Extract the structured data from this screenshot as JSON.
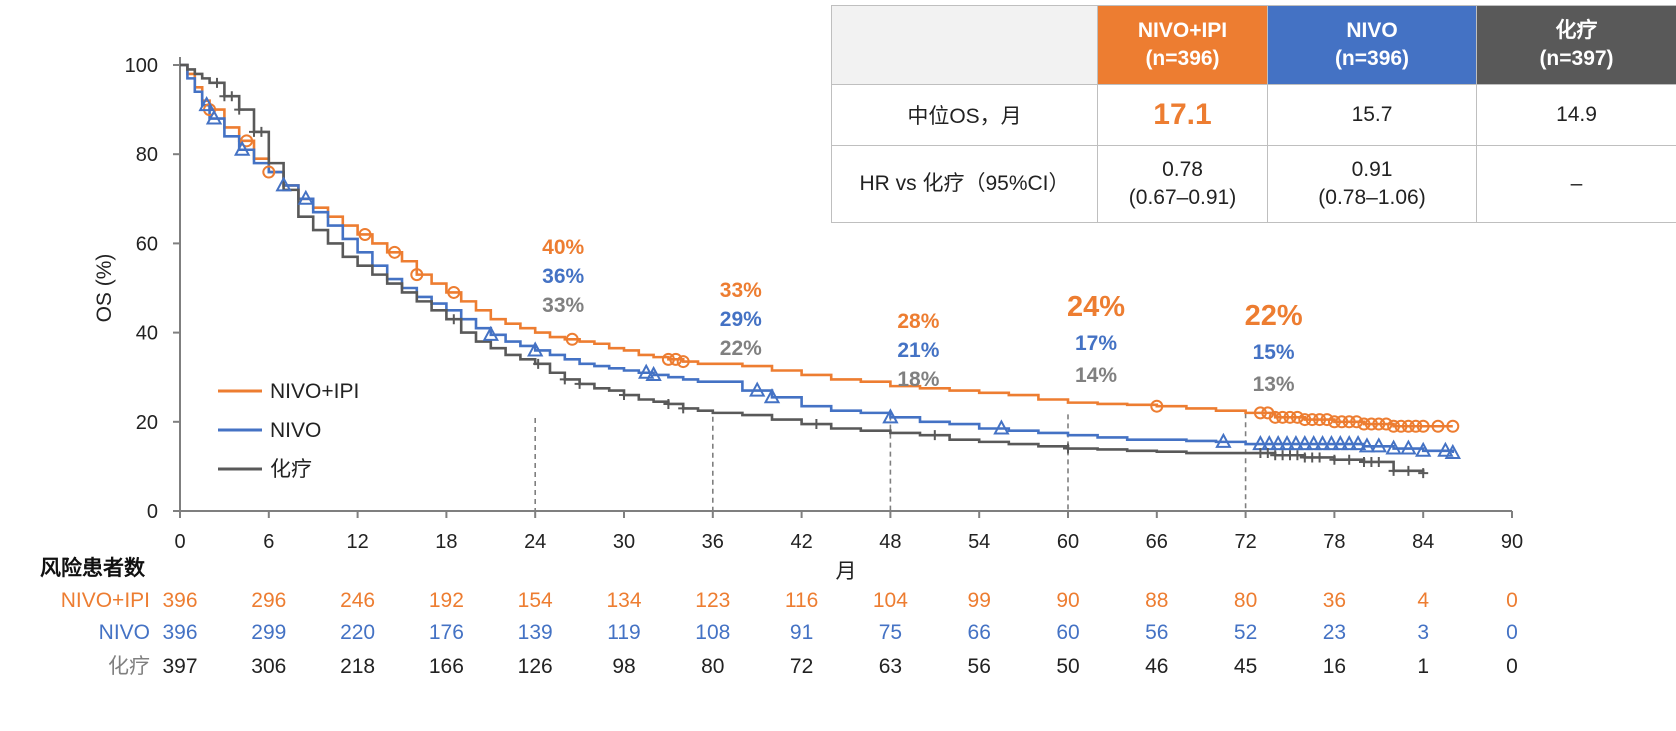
{
  "colors": {
    "nivo_ipi": "#ED7D31",
    "nivo": "#4472C4",
    "chemo": "#595959",
    "chemo_label": "#808080",
    "header_blank": "#f2f2f2",
    "header_chemo": "#595959"
  },
  "chart_data": {
    "type": "line",
    "subtype": "kaplan-meier",
    "title": "",
    "xlabel": "月",
    "ylabel": "OS (%)",
    "xlim": [
      0,
      90
    ],
    "ylim": [
      0,
      100
    ],
    "x_ticks": [
      0,
      6,
      12,
      18,
      24,
      30,
      36,
      42,
      48,
      54,
      60,
      66,
      72,
      78,
      84,
      90
    ],
    "y_ticks": [
      0,
      20,
      40,
      60,
      80,
      100
    ],
    "grid": false,
    "legend_position": "bottom-left",
    "series": [
      {
        "name": "NIVO+IPI",
        "color": "#ED7D31",
        "censor_marker": "circle",
        "x": [
          0,
          0.5,
          1,
          1.5,
          2,
          3,
          4,
          5,
          6,
          7,
          8,
          9,
          10,
          11,
          12,
          13,
          14,
          15,
          16,
          17,
          18,
          19,
          20,
          21,
          22,
          23,
          24,
          25,
          26,
          27,
          28,
          29,
          30,
          31,
          32,
          33,
          34,
          35,
          36,
          38,
          40,
          42,
          44,
          46,
          48,
          50,
          52,
          54,
          56,
          58,
          60,
          62,
          64,
          66,
          68,
          70,
          72,
          74,
          76,
          78,
          80,
          82,
          84,
          86
        ],
        "y": [
          100,
          98,
          95,
          92,
          90,
          86,
          83,
          79,
          76,
          73,
          70,
          68,
          66,
          64,
          62,
          60,
          58,
          56,
          53,
          51,
          49,
          47,
          45,
          43,
          42,
          41,
          40,
          39,
          38.5,
          38,
          37.5,
          36.5,
          36,
          35,
          34.5,
          34,
          33.5,
          33,
          33,
          32.5,
          31.5,
          30.5,
          29.5,
          29,
          28,
          27.5,
          27,
          26.5,
          26,
          25,
          24.3,
          24,
          23.8,
          23.5,
          23,
          22.5,
          22,
          21,
          20.5,
          20,
          19.5,
          19,
          19,
          19
        ],
        "censors_x": [
          2,
          4.5,
          6,
          12.5,
          14.5,
          16,
          18.5,
          26.5,
          33,
          33.5,
          34,
          66,
          73,
          73.5,
          74,
          74.5,
          75,
          75.5,
          76,
          76.5,
          77,
          77.5,
          78,
          78.5,
          79,
          79.5,
          80,
          80.5,
          81,
          81.5,
          82,
          82.5,
          83,
          83.5,
          84,
          85,
          86
        ]
      },
      {
        "name": "NIVO",
        "color": "#4472C4",
        "censor_marker": "triangle",
        "x": [
          0,
          0.5,
          1,
          1.5,
          2,
          3,
          4,
          5,
          6,
          7,
          8,
          9,
          10,
          11,
          12,
          13,
          14,
          15,
          16,
          17,
          18,
          19,
          20,
          21,
          22,
          23,
          24,
          25,
          26,
          27,
          28,
          29,
          30,
          31,
          32,
          33,
          34,
          35,
          36,
          38,
          40,
          42,
          44,
          46,
          48,
          50,
          52,
          54,
          56,
          58,
          60,
          62,
          64,
          66,
          68,
          70,
          72,
          74,
          76,
          78,
          80,
          82,
          84,
          86
        ],
        "y": [
          100,
          97,
          94,
          91,
          88,
          84,
          81,
          78,
          76,
          73,
          70,
          67,
          64,
          61,
          58,
          55,
          52,
          50,
          48,
          46.5,
          45,
          43,
          41,
          39.5,
          38,
          37,
          36,
          35,
          34,
          33,
          32.5,
          32,
          31.5,
          31,
          30.5,
          30,
          29.5,
          29,
          29,
          27,
          25.5,
          23.5,
          22.5,
          22,
          21,
          20,
          19.5,
          18.5,
          18,
          17.5,
          17,
          16.5,
          16,
          16,
          15.7,
          15.5,
          15,
          15,
          15,
          15,
          14.5,
          14,
          13.5,
          13
        ]
      },
      {
        "name": "化疗",
        "color": "#595959",
        "censor_marker": "plus",
        "x": [
          0,
          0.5,
          1,
          1.5,
          2,
          3,
          4,
          5,
          6,
          7,
          8,
          9,
          10,
          11,
          12,
          13,
          14,
          15,
          16,
          17,
          18,
          19,
          20,
          21,
          22,
          23,
          24,
          25,
          26,
          27,
          28,
          29,
          30,
          31,
          32,
          33,
          34,
          35,
          36,
          38,
          40,
          42,
          44,
          46,
          48,
          50,
          52,
          54,
          56,
          58,
          60,
          62,
          64,
          66,
          68,
          70,
          72,
          74,
          76,
          78,
          80,
          82,
          84
        ],
        "y": [
          100,
          99,
          98,
          97,
          96,
          93,
          90,
          85,
          78,
          72,
          66,
          63,
          60,
          57,
          55,
          53,
          51,
          49,
          47,
          45,
          43,
          40,
          38,
          36.5,
          35,
          34,
          33,
          31,
          29.5,
          28.5,
          27.5,
          27,
          26,
          25,
          24.5,
          24,
          23,
          22.5,
          22,
          21.5,
          20.5,
          19.5,
          18.5,
          18,
          17.5,
          17,
          16,
          15.5,
          15,
          14.5,
          14,
          13.8,
          13.5,
          13.3,
          13,
          13,
          13,
          12.5,
          12,
          11.5,
          11,
          9,
          8.5
        ]
      }
    ],
    "landmarks": [
      {
        "x": 24,
        "values": [
          "40%",
          "36%",
          "33%"
        ],
        "big": false
      },
      {
        "x": 36,
        "values": [
          "33%",
          "29%",
          "22%"
        ],
        "big": false
      },
      {
        "x": 48,
        "values": [
          "28%",
          "21%",
          "18%"
        ],
        "big": false
      },
      {
        "x": 60,
        "values": [
          "24%",
          "17%",
          "14%"
        ],
        "big": true
      },
      {
        "x": 72,
        "values": [
          "22%",
          "15%",
          "13%"
        ],
        "big": true
      }
    ],
    "legend": [
      "NIVO+IPI",
      "NIVO",
      "化疗"
    ],
    "risk_table": {
      "title": "风险患者数",
      "rows": [
        {
          "label": "NIVO+IPI",
          "values": [
            396,
            296,
            246,
            192,
            154,
            134,
            123,
            116,
            104,
            99,
            90,
            88,
            80,
            36,
            4,
            0
          ]
        },
        {
          "label": "NIVO",
          "values": [
            396,
            299,
            220,
            176,
            139,
            119,
            108,
            91,
            75,
            66,
            60,
            56,
            52,
            23,
            3,
            0
          ]
        },
        {
          "label": "化疗",
          "values": [
            397,
            306,
            218,
            166,
            126,
            98,
            80,
            72,
            63,
            56,
            50,
            46,
            45,
            16,
            1,
            0
          ]
        }
      ]
    }
  },
  "summary_table": {
    "headers": [
      "NIVO+IPI\n(n=396)",
      "NIVO\n(n=396)",
      "化疗\n(n=397)"
    ],
    "rows": [
      {
        "label": "中位OS，月",
        "values": [
          "17.1",
          "15.7",
          "14.9"
        ]
      },
      {
        "label": "HR vs 化疗（95%CI）",
        "values": [
          "0.78\n(0.67–0.91)",
          "0.91\n(0.78–1.06)",
          "–"
        ]
      }
    ]
  }
}
